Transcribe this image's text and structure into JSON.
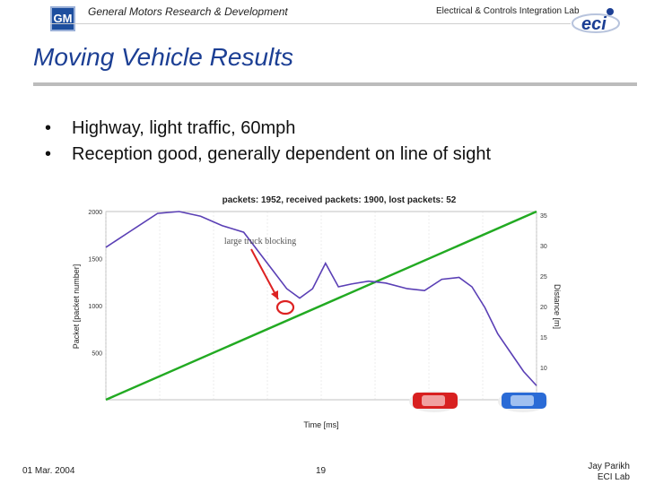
{
  "header": {
    "logo_text": "GM",
    "org": "General Motors Research & Development",
    "lab": "Electrical & Controls Integration Lab",
    "eci_logo_text": "eci"
  },
  "title": "Moving Vehicle Results",
  "bullets": [
    "Highway, light traffic, 60mph",
    "Reception good, generally dependent on line of sight"
  ],
  "chart_data": {
    "type": "line",
    "title": "packets: 1952, received packets: 1900, lost packets: 52",
    "xlabel": "Time [ms]",
    "ylabel_left": "Packet [packet number]",
    "ylabel_right": "Distance [m]",
    "annotation": "large truck blocking",
    "left_ticks": [
      "2000",
      "1500",
      "1000",
      "500"
    ],
    "right_ticks": [
      "35",
      "30",
      "25",
      "20",
      "15",
      "10"
    ],
    "ylim": [
      0,
      2000
    ],
    "xlim": [
      0,
      1
    ],
    "series": [
      {
        "color": "#22aa22",
        "x": [
          0.0,
          1.0
        ],
        "y": [
          0,
          2000
        ]
      },
      {
        "color": "#5a3fb5",
        "x": [
          0.0,
          0.06,
          0.12,
          0.17,
          0.22,
          0.27,
          0.32,
          0.38,
          0.42,
          0.45,
          0.48,
          0.51,
          0.54,
          0.57,
          0.61,
          0.65,
          0.7,
          0.74,
          0.78,
          0.82,
          0.85,
          0.88,
          0.91,
          0.94,
          0.97,
          1.0
        ],
        "y": [
          1620,
          1800,
          1980,
          2000,
          1950,
          1850,
          1780,
          1420,
          1180,
          1080,
          1180,
          1450,
          1200,
          1230,
          1260,
          1240,
          1180,
          1160,
          1280,
          1300,
          1200,
          980,
          700,
          500,
          300,
          150
        ]
      }
    ]
  },
  "footer": {
    "date": "01 Mar. 2004",
    "page": "19",
    "author": "Jay Parikh",
    "author_lab": "ECI Lab"
  }
}
